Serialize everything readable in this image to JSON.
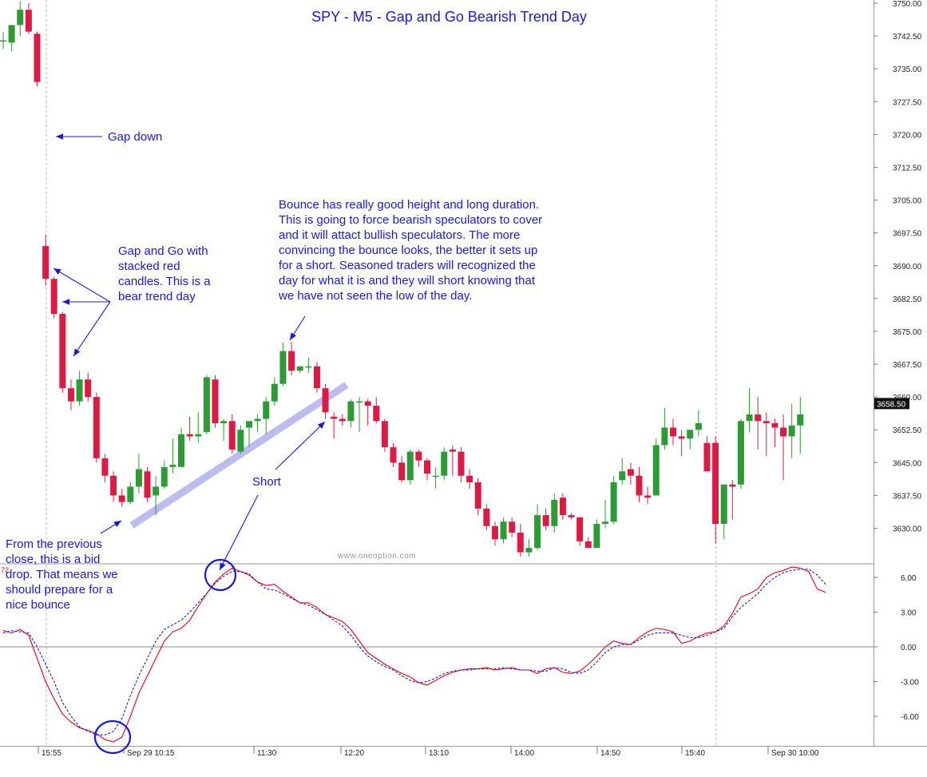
{
  "chart_data": {
    "type": "candlestick",
    "title": "SPY - M5 - Gap and Go Bearish Trend Day",
    "watermark": "www.oneoption.com",
    "price_axis": {
      "ylim": [
        3624.0,
        3750.5
      ],
      "ticks": [
        "3750.00",
        "3742.50",
        "3735.00",
        "3727.50",
        "3720.00",
        "3712.50",
        "3705.00",
        "3697.50",
        "3690.00",
        "3682.50",
        "3675.00",
        "3667.50",
        "3660.00",
        "3652.50",
        "3645.00",
        "3637.50",
        "3630.00"
      ],
      "last_price": "3658.50"
    },
    "oscillator_axis": {
      "ylim": [
        -8.5,
        8.0
      ],
      "ticks": [
        "6.00",
        "3.00",
        "0.00",
        "-3.00",
        "-6.00"
      ],
      "marker": "72"
    },
    "time_labels": [
      "15:55",
      "Sep 29 10:15",
      "11:30",
      "12:20",
      "13:10",
      "14:00",
      "14:50",
      "15:40",
      "Sep 30 10:00"
    ],
    "candles": [
      {
        "o": 3741.5,
        "h": 3743.5,
        "l": 3739.5,
        "c": 3741.5
      },
      {
        "o": 3741.0,
        "h": 3745.0,
        "l": 3739.0,
        "c": 3745.0
      },
      {
        "o": 3745.0,
        "h": 3750.5,
        "l": 3742.5,
        "c": 3748.5
      },
      {
        "o": 3748.5,
        "h": 3750.0,
        "l": 3743.0,
        "c": 3743.5
      },
      {
        "o": 3743.0,
        "h": 3743.5,
        "l": 3731.0,
        "c": 3732.0
      },
      {
        "o": 3694.5,
        "h": 3697.0,
        "l": 3685.5,
        "c": 3687.0
      },
      {
        "o": 3687.0,
        "h": 3687.5,
        "l": 3678.0,
        "c": 3679.0
      },
      {
        "o": 3679.0,
        "h": 3679.5,
        "l": 3661.0,
        "c": 3662.0
      },
      {
        "o": 3662.0,
        "h": 3664.0,
        "l": 3657.0,
        "c": 3659.0
      },
      {
        "o": 3659.0,
        "h": 3666.0,
        "l": 3658.0,
        "c": 3664.0
      },
      {
        "o": 3664.0,
        "h": 3665.5,
        "l": 3659.0,
        "c": 3660.0
      },
      {
        "o": 3660.0,
        "h": 3661.0,
        "l": 3645.0,
        "c": 3646.0
      },
      {
        "o": 3646.0,
        "h": 3647.0,
        "l": 3640.5,
        "c": 3642.0
      },
      {
        "o": 3642.0,
        "h": 3643.0,
        "l": 3636.0,
        "c": 3637.5
      },
      {
        "o": 3637.5,
        "h": 3639.0,
        "l": 3635.0,
        "c": 3636.0
      },
      {
        "o": 3636.0,
        "h": 3640.5,
        "l": 3635.5,
        "c": 3639.5
      },
      {
        "o": 3639.5,
        "h": 3647.0,
        "l": 3638.0,
        "c": 3643.5
      },
      {
        "o": 3643.0,
        "h": 3644.0,
        "l": 3636.0,
        "c": 3637.0
      },
      {
        "o": 3637.5,
        "h": 3642.0,
        "l": 3633.0,
        "c": 3639.5
      },
      {
        "o": 3639.5,
        "h": 3645.5,
        "l": 3639.0,
        "c": 3644.0
      },
      {
        "o": 3644.0,
        "h": 3650.5,
        "l": 3642.5,
        "c": 3644.5
      },
      {
        "o": 3644.0,
        "h": 3653.0,
        "l": 3644.0,
        "c": 3651.5
      },
      {
        "o": 3651.5,
        "h": 3655.5,
        "l": 3650.0,
        "c": 3651.0
      },
      {
        "o": 3651.0,
        "h": 3656.5,
        "l": 3649.5,
        "c": 3651.5
      },
      {
        "o": 3652.0,
        "h": 3665.0,
        "l": 3651.5,
        "c": 3664.5
      },
      {
        "o": 3664.0,
        "h": 3665.0,
        "l": 3653.0,
        "c": 3654.0
      },
      {
        "o": 3654.0,
        "h": 3655.0,
        "l": 3650.0,
        "c": 3654.5
      },
      {
        "o": 3654.5,
        "h": 3656.0,
        "l": 3647.0,
        "c": 3648.0
      },
      {
        "o": 3647.5,
        "h": 3653.5,
        "l": 3647.0,
        "c": 3652.5
      },
      {
        "o": 3653.0,
        "h": 3654.0,
        "l": 3648.5,
        "c": 3654.5
      },
      {
        "o": 3654.5,
        "h": 3656.0,
        "l": 3652.0,
        "c": 3655.0
      },
      {
        "o": 3655.0,
        "h": 3660.0,
        "l": 3651.5,
        "c": 3659.0
      },
      {
        "o": 3659.0,
        "h": 3664.5,
        "l": 3658.0,
        "c": 3663.0
      },
      {
        "o": 3663.0,
        "h": 3672.5,
        "l": 3662.5,
        "c": 3670.5
      },
      {
        "o": 3670.5,
        "h": 3672.5,
        "l": 3665.0,
        "c": 3666.0
      },
      {
        "o": 3666.0,
        "h": 3667.0,
        "l": 3665.5,
        "c": 3667.0
      },
      {
        "o": 3667.0,
        "h": 3669.0,
        "l": 3665.5,
        "c": 3667.0
      },
      {
        "o": 3667.0,
        "h": 3668.0,
        "l": 3661.0,
        "c": 3662.0
      },
      {
        "o": 3662.0,
        "h": 3663.0,
        "l": 3655.0,
        "c": 3656.5
      },
      {
        "o": 3655.5,
        "h": 3656.5,
        "l": 3650.5,
        "c": 3655.0
      },
      {
        "o": 3655.0,
        "h": 3656.0,
        "l": 3653.5,
        "c": 3654.5
      },
      {
        "o": 3654.5,
        "h": 3659.5,
        "l": 3653.0,
        "c": 3659.0
      },
      {
        "o": 3659.0,
        "h": 3660.0,
        "l": 3652.0,
        "c": 3659.0
      },
      {
        "o": 3659.0,
        "h": 3659.5,
        "l": 3653.5,
        "c": 3658.0
      },
      {
        "o": 3658.0,
        "h": 3660.0,
        "l": 3654.0,
        "c": 3654.5
      },
      {
        "o": 3654.5,
        "h": 3655.0,
        "l": 3647.5,
        "c": 3648.5
      },
      {
        "o": 3648.5,
        "h": 3649.5,
        "l": 3644.0,
        "c": 3645.0
      },
      {
        "o": 3645.0,
        "h": 3646.5,
        "l": 3640.5,
        "c": 3641.0
      },
      {
        "o": 3641.0,
        "h": 3648.0,
        "l": 3640.0,
        "c": 3647.5
      },
      {
        "o": 3647.5,
        "h": 3648.0,
        "l": 3644.0,
        "c": 3645.5
      },
      {
        "o": 3645.5,
        "h": 3646.0,
        "l": 3641.0,
        "c": 3642.5
      },
      {
        "o": 3642.0,
        "h": 3644.0,
        "l": 3639.0,
        "c": 3642.0
      },
      {
        "o": 3642.0,
        "h": 3648.5,
        "l": 3641.0,
        "c": 3647.5
      },
      {
        "o": 3648.0,
        "h": 3649.0,
        "l": 3642.0,
        "c": 3647.5
      },
      {
        "o": 3647.5,
        "h": 3648.5,
        "l": 3640.5,
        "c": 3642.0
      },
      {
        "o": 3642.0,
        "h": 3643.5,
        "l": 3639.0,
        "c": 3640.5
      },
      {
        "o": 3640.5,
        "h": 3641.5,
        "l": 3633.0,
        "c": 3634.5
      },
      {
        "o": 3634.5,
        "h": 3635.5,
        "l": 3629.5,
        "c": 3630.5
      },
      {
        "o": 3630.5,
        "h": 3631.5,
        "l": 3626.0,
        "c": 3627.5
      },
      {
        "o": 3627.5,
        "h": 3632.5,
        "l": 3626.5,
        "c": 3631.5
      },
      {
        "o": 3631.5,
        "h": 3632.5,
        "l": 3628.0,
        "c": 3629.0
      },
      {
        "o": 3629.0,
        "h": 3631.0,
        "l": 3623.5,
        "c": 3624.5
      },
      {
        "o": 3624.5,
        "h": 3627.5,
        "l": 3623.5,
        "c": 3625.5
      },
      {
        "o": 3625.5,
        "h": 3635.5,
        "l": 3625.0,
        "c": 3633.0
      },
      {
        "o": 3633.0,
        "h": 3634.5,
        "l": 3629.5,
        "c": 3630.5
      },
      {
        "o": 3630.5,
        "h": 3638.0,
        "l": 3629.0,
        "c": 3636.5
      },
      {
        "o": 3637.0,
        "h": 3638.0,
        "l": 3632.0,
        "c": 3633.0
      },
      {
        "o": 3633.0,
        "h": 3633.5,
        "l": 3632.0,
        "c": 3632.5
      },
      {
        "o": 3632.5,
        "h": 3632.5,
        "l": 3626.0,
        "c": 3627.0
      },
      {
        "o": 3627.0,
        "h": 3628.0,
        "l": 3625.5,
        "c": 3625.5
      },
      {
        "o": 3625.5,
        "h": 3632.0,
        "l": 3625.5,
        "c": 3631.0
      },
      {
        "o": 3631.0,
        "h": 3636.5,
        "l": 3630.0,
        "c": 3631.5
      },
      {
        "o": 3631.5,
        "h": 3642.0,
        "l": 3631.0,
        "c": 3640.5
      },
      {
        "o": 3641.0,
        "h": 3646.0,
        "l": 3640.0,
        "c": 3643.0
      },
      {
        "o": 3643.5,
        "h": 3645.0,
        "l": 3640.0,
        "c": 3642.0
      },
      {
        "o": 3642.0,
        "h": 3644.0,
        "l": 3636.0,
        "c": 3637.5
      },
      {
        "o": 3637.5,
        "h": 3639.5,
        "l": 3635.5,
        "c": 3637.0
      },
      {
        "o": 3637.5,
        "h": 3650.5,
        "l": 3637.5,
        "c": 3649.0
      },
      {
        "o": 3649.0,
        "h": 3657.5,
        "l": 3648.0,
        "c": 3653.0
      },
      {
        "o": 3653.0,
        "h": 3655.0,
        "l": 3649.0,
        "c": 3651.0
      },
      {
        "o": 3651.0,
        "h": 3652.5,
        "l": 3646.5,
        "c": 3650.5
      },
      {
        "o": 3650.5,
        "h": 3652.0,
        "l": 3648.0,
        "c": 3652.5
      },
      {
        "o": 3652.5,
        "h": 3657.0,
        "l": 3651.0,
        "c": 3654.0
      },
      {
        "o": 3649.5,
        "h": 3651.0,
        "l": 3643.0,
        "c": 3643.0
      },
      {
        "o": 3649.5,
        "h": 3651.0,
        "l": 3626.5,
        "c": 3631.0
      },
      {
        "o": 3631.0,
        "h": 3639.0,
        "l": 3627.5,
        "c": 3640.0
      },
      {
        "o": 3640.0,
        "h": 3641.0,
        "l": 3632.0,
        "c": 3639.5
      },
      {
        "o": 3640.0,
        "h": 3655.0,
        "l": 3639.0,
        "c": 3654.5
      },
      {
        "o": 3654.5,
        "h": 3662.0,
        "l": 3652.0,
        "c": 3656.0
      },
      {
        "o": 3656.0,
        "h": 3660.0,
        "l": 3648.0,
        "c": 3654.5
      },
      {
        "o": 3654.5,
        "h": 3656.5,
        "l": 3646.5,
        "c": 3654.0
      },
      {
        "o": 3654.0,
        "h": 3655.0,
        "l": 3648.5,
        "c": 3653.0
      },
      {
        "o": 3653.0,
        "h": 3656.0,
        "l": 3641.0,
        "c": 3651.0
      },
      {
        "o": 3651.0,
        "h": 3658.5,
        "l": 3646.0,
        "c": 3653.5
      },
      {
        "o": 3653.5,
        "h": 3660.0,
        "l": 3647.0,
        "c": 3656.0
      }
    ],
    "series": [
      {
        "color": "#e8001a",
        "values": [
          1.4,
          1.2,
          1.5,
          1.0,
          -1.0,
          -3.0,
          -4.5,
          -5.8,
          -6.5,
          -7.0,
          -7.2,
          -7.5,
          -8.0,
          -8.2,
          -7.8,
          -6.0,
          -4.0,
          -2.5,
          -1.0,
          0.5,
          1.3,
          1.6,
          2.3,
          3.5,
          4.6,
          5.6,
          6.3,
          6.8,
          6.5,
          6.2,
          5.6,
          5.3,
          5.4,
          4.8,
          4.3,
          3.8,
          3.8,
          3.4,
          2.8,
          2.5,
          2.2,
          1.5,
          0.5,
          -0.5,
          -1.0,
          -1.5,
          -1.9,
          -2.3,
          -2.6,
          -3.1,
          -3.3,
          -2.9,
          -2.5,
          -2.2,
          -2.0,
          -1.9,
          -1.9,
          -1.8,
          -2.0,
          -1.9,
          -1.8,
          -2.0,
          -2.0,
          -2.3,
          -1.9,
          -1.8,
          -2.2,
          -2.3,
          -2.1,
          -1.5,
          -0.8,
          0.0,
          0.5,
          0.3,
          0.2,
          0.8,
          1.3,
          1.6,
          1.5,
          1.3,
          0.3,
          0.5,
          0.9,
          1.2,
          1.3,
          1.8,
          2.9,
          4.3,
          4.6,
          5.0,
          6.0,
          6.4,
          6.6,
          6.9,
          6.8,
          6.5,
          5.0,
          4.7
        ]
      },
      {
        "color": "#1a1ad0",
        "values": [
          1.2,
          1.4,
          1.3,
          1.2,
          0.0,
          -1.5,
          -3.0,
          -4.8,
          -6.0,
          -6.9,
          -7.3,
          -7.6,
          -7.6,
          -7.3,
          -6.2,
          -4.2,
          -2.5,
          -1.0,
          0.5,
          1.5,
          1.9,
          2.3,
          3.0,
          3.8,
          4.6,
          5.5,
          6.1,
          6.5,
          6.5,
          6.3,
          5.6,
          5.0,
          4.9,
          4.6,
          4.2,
          3.8,
          3.6,
          3.2,
          2.8,
          2.3,
          1.8,
          1.0,
          0.0,
          -0.8,
          -1.3,
          -1.7,
          -2.0,
          -2.5,
          -2.9,
          -3.1,
          -3.0,
          -2.7,
          -2.3,
          -2.1,
          -2.0,
          -2.0,
          -1.9,
          -1.9,
          -1.9,
          -1.8,
          -1.9,
          -2.0,
          -2.0,
          -2.1,
          -2.1,
          -1.8,
          -1.9,
          -2.2,
          -2.3,
          -2.0,
          -1.3,
          -0.5,
          0.0,
          0.2,
          0.2,
          0.6,
          1.0,
          1.2,
          1.2,
          1.2,
          1.0,
          0.8,
          0.8,
          1.0,
          1.3,
          1.6,
          2.6,
          3.4,
          4.0,
          4.6,
          5.4,
          6.0,
          6.4,
          6.6,
          6.7,
          6.7,
          6.2,
          5.4
        ]
      }
    ],
    "annotations": {
      "gap_down": "Gap down",
      "gap_and_go": "Gap and Go with\nstacked red\ncandles. This is a\nbear trend day",
      "bounce": "Bounce has really good height and long duration.\nThis is going to force bearish speculators to cover\nand it will attact bullish speculators. The more\nconvincing the bounce looks, the better it sets up\nfor a short. Seasoned traders will recognized the\nday for what it is and they will short knowing that\nwe have not seen the low of the day.",
      "short": "Short",
      "bid_drop": "From the previous\nclose, this is a bid\ndrop. That means we\nshould prepare for a\nnice bounce"
    },
    "colors": {
      "up": "#2e9a35",
      "down": "#dd1a44",
      "annotation": "#1a1ad0",
      "trendline": "#b9b9ee"
    },
    "grid": false
  }
}
